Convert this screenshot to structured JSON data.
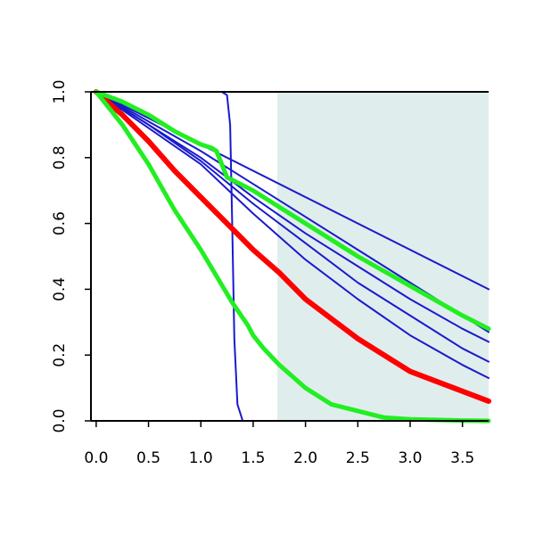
{
  "chart_data": {
    "type": "line",
    "title": "",
    "xlabel": "",
    "ylabel": "",
    "xlim": [
      -0.05,
      3.75
    ],
    "ylim": [
      0.0,
      1.0
    ],
    "x_ticks": [
      "0.0",
      "0.5",
      "1.0",
      "1.5",
      "2.0",
      "2.5",
      "3.0",
      "3.5"
    ],
    "y_ticks": [
      "0.0",
      "0.2",
      "0.4",
      "0.6",
      "0.8",
      "1.0"
    ],
    "shaded_region": {
      "x_from": 1.73,
      "x_to": 3.75,
      "color": "#e0eded"
    },
    "grid": false,
    "colors": {
      "blue": "#1a1acc",
      "red": "#ff0000",
      "green": "#22ee22",
      "axis": "#000000"
    },
    "series": [
      {
        "color": "blue",
        "width": 2,
        "x": [
          0,
          1.0,
          1.2,
          1.25,
          1.28,
          1.3,
          1.32,
          1.35,
          1.4,
          3.75
        ],
        "y": [
          1.0,
          1.0,
          1.0,
          0.99,
          0.9,
          0.6,
          0.25,
          0.05,
          0.0,
          0.0
        ]
      },
      {
        "color": "blue",
        "width": 2,
        "x": [
          0,
          3.75
        ],
        "y": [
          1.0,
          0.4
        ]
      },
      {
        "color": "blue",
        "width": 2,
        "x": [
          0,
          0.5,
          1.0,
          1.5,
          2.0,
          2.5,
          3.0,
          3.5,
          3.75
        ],
        "y": [
          1.0,
          0.91,
          0.82,
          0.72,
          0.62,
          0.52,
          0.42,
          0.32,
          0.27
        ]
      },
      {
        "color": "blue",
        "width": 2,
        "x": [
          0,
          0.5,
          1.0,
          1.5,
          2.0,
          2.5,
          3.0,
          3.5,
          3.75
        ],
        "y": [
          1.0,
          0.9,
          0.8,
          0.68,
          0.57,
          0.47,
          0.37,
          0.28,
          0.24
        ]
      },
      {
        "color": "blue",
        "width": 2,
        "x": [
          0,
          0.5,
          1.0,
          1.5,
          2.0,
          2.5,
          3.0,
          3.5,
          3.75
        ],
        "y": [
          1.0,
          0.9,
          0.79,
          0.66,
          0.54,
          0.42,
          0.32,
          0.22,
          0.18
        ]
      },
      {
        "color": "blue",
        "width": 2,
        "x": [
          0,
          0.5,
          1.0,
          1.5,
          2.0,
          2.5,
          3.0,
          3.5,
          3.75
        ],
        "y": [
          1.0,
          0.89,
          0.78,
          0.63,
          0.49,
          0.37,
          0.26,
          0.17,
          0.13
        ]
      },
      {
        "color": "red",
        "width": 6,
        "x": [
          0,
          0.25,
          0.5,
          0.75,
          1.0,
          1.25,
          1.5,
          1.75,
          2.0,
          2.25,
          2.5,
          2.75,
          3.0,
          3.25,
          3.5,
          3.75
        ],
        "y": [
          1.0,
          0.93,
          0.85,
          0.76,
          0.68,
          0.6,
          0.52,
          0.45,
          0.37,
          0.31,
          0.25,
          0.2,
          0.15,
          0.12,
          0.09,
          0.06
        ]
      },
      {
        "color": "green",
        "width": 5,
        "x": [
          0,
          0.25,
          0.5,
          0.75,
          1.0,
          1.1,
          1.15,
          1.2,
          1.25,
          1.5,
          1.75,
          2.0,
          2.5,
          3.0,
          3.5,
          3.75
        ],
        "y": [
          1.0,
          0.97,
          0.93,
          0.88,
          0.84,
          0.83,
          0.82,
          0.78,
          0.74,
          0.7,
          0.65,
          0.6,
          0.5,
          0.41,
          0.32,
          0.28
        ]
      },
      {
        "color": "green",
        "width": 5,
        "x": [
          0,
          0.25,
          0.5,
          0.75,
          1.0,
          1.15,
          1.3,
          1.45,
          1.5,
          1.6,
          1.75,
          2.0,
          2.25,
          2.5,
          2.75,
          3.0,
          3.5,
          3.75
        ],
        "y": [
          1.0,
          0.9,
          0.78,
          0.64,
          0.52,
          0.44,
          0.36,
          0.29,
          0.26,
          0.22,
          0.17,
          0.1,
          0.05,
          0.03,
          0.01,
          0.005,
          0.001,
          0.0
        ]
      }
    ]
  }
}
